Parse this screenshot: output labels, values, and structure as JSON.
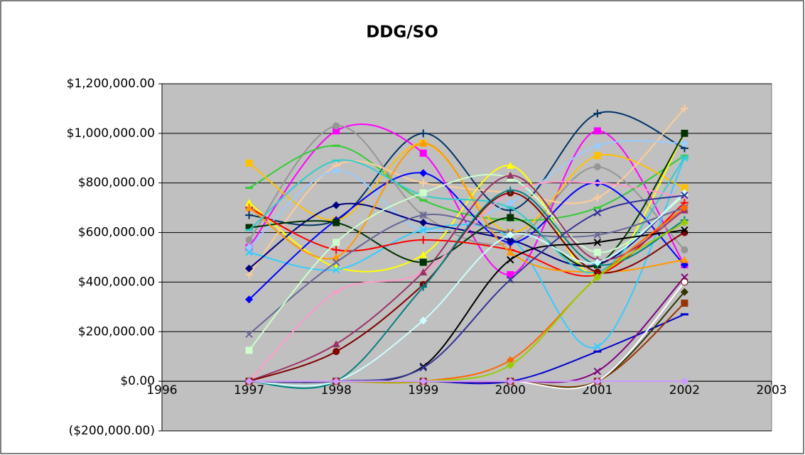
{
  "chart_data": {
    "type": "line",
    "title": "DDG/SO",
    "smooth": true,
    "x": [
      1997,
      1998,
      1999,
      2000,
      2001,
      2002
    ],
    "xlim": [
      1996,
      2003
    ],
    "xticks": [
      1996,
      1997,
      1998,
      1999,
      2000,
      2001,
      2002,
      2003
    ],
    "ylim": [
      -200000,
      1200000
    ],
    "yticks": [
      {
        "value": -200000,
        "label": "($200,000.00)"
      },
      {
        "value": 0,
        "label": "$0.00"
      },
      {
        "value": 200000,
        "label": "$200,000.00"
      },
      {
        "value": 400000,
        "label": "$400,000.00"
      },
      {
        "value": 600000,
        "label": "$600,000.00"
      },
      {
        "value": 800000,
        "label": "$800,000.00"
      },
      {
        "value": 1000000,
        "label": "$1,000,000.00"
      },
      {
        "value": 1200000,
        "label": "$1,200,000.00"
      }
    ],
    "grid": true,
    "plot_background": "#c0c0c0",
    "series": [
      {
        "color": "#003366",
        "marker": "plus",
        "values": [
          670000,
          650000,
          1000000,
          690000,
          1080000,
          940000
        ]
      },
      {
        "color": "#ff00ff",
        "marker": "square",
        "values": [
          540000,
          1010000,
          920000,
          430000,
          1010000,
          470000
        ]
      },
      {
        "color": "#969696",
        "marker": "circle",
        "values": [
          570000,
          1030000,
          670000,
          560000,
          865000,
          530000
        ]
      },
      {
        "color": "#33cc33",
        "marker": "dash",
        "values": [
          780000,
          950000,
          730000,
          650000,
          700000,
          910000
        ]
      },
      {
        "color": "#ffc000",
        "marker": "square",
        "values": [
          880000,
          650000,
          960000,
          600000,
          910000,
          780000
        ]
      },
      {
        "color": "#ffff00",
        "marker": "triangle",
        "values": [
          720000,
          460000,
          510000,
          870000,
          430000,
          1000000
        ]
      },
      {
        "color": "#ffcc99",
        "marker": "plus",
        "values": [
          430000,
          870000,
          800000,
          760000,
          740000,
          1100000
        ]
      },
      {
        "color": "#99ccff",
        "marker": "diamond",
        "values": [
          540000,
          850000,
          610000,
          720000,
          950000,
          960000
        ]
      },
      {
        "color": "#33ccff",
        "marker": "x",
        "values": [
          520000,
          450000,
          610000,
          580000,
          140000,
          900000
        ]
      },
      {
        "color": "#0000ff",
        "marker": "diamond",
        "values": [
          330000,
          650000,
          840000,
          560000,
          800000,
          470000
        ]
      },
      {
        "color": "#000080",
        "marker": "diamond",
        "values": [
          455000,
          710000,
          640000,
          570000,
          470000,
          760000
        ]
      },
      {
        "color": "#003300",
        "marker": "square",
        "values": [
          620000,
          640000,
          480000,
          660000,
          470000,
          1000000
        ]
      },
      {
        "color": "#ff0000",
        "marker": "plus",
        "values": [
          700000,
          530000,
          570000,
          530000,
          430000,
          720000
        ]
      },
      {
        "color": "#ff9900",
        "marker": "triangle",
        "values": [
          700000,
          500000,
          960000,
          520000,
          440000,
          490000
        ]
      },
      {
        "color": "#33cccc",
        "marker": "dash",
        "values": [
          610000,
          890000,
          750000,
          700000,
          440000,
          900000
        ]
      },
      {
        "color": "#666699",
        "marker": "x",
        "values": [
          190000,
          480000,
          670000,
          600000,
          590000,
          700000
        ]
      },
      {
        "color": "#ccffcc",
        "marker": "square",
        "values": [
          125000,
          560000,
          760000,
          820000,
          520000,
          750000
        ]
      },
      {
        "color": "#ff99cc",
        "marker": "dash",
        "values": [
          0,
          360000,
          440000,
          760000,
          800000,
          740000
        ]
      },
      {
        "color": "#993366",
        "marker": "triangle",
        "values": [
          0,
          150000,
          440000,
          830000,
          490000,
          690000
        ]
      },
      {
        "color": "#800000",
        "marker": "circle",
        "values": [
          0,
          120000,
          390000,
          760000,
          440000,
          600000
        ]
      },
      {
        "color": "#008080",
        "marker": "plus",
        "values": [
          0,
          0,
          380000,
          770000,
          470000,
          650000
        ]
      },
      {
        "color": "#ccffff",
        "marker": "diamond",
        "values": [
          0,
          0,
          245000,
          590000,
          480000,
          760000
        ]
      },
      {
        "color": "#000000",
        "marker": "x",
        "values": [
          0,
          0,
          60000,
          490000,
          560000,
          610000
        ]
      },
      {
        "color": "#333399",
        "marker": "x",
        "values": [
          0,
          0,
          55000,
          410000,
          680000,
          750000
        ]
      },
      {
        "color": "#ff6600",
        "marker": "diamond",
        "values": [
          0,
          0,
          0,
          85000,
          420000,
          700000
        ]
      },
      {
        "color": "#99cc00",
        "marker": "diamond",
        "values": [
          0,
          0,
          0,
          65000,
          420000,
          640000
        ]
      },
      {
        "color": "#0000cc",
        "marker": "dash",
        "values": [
          0,
          0,
          0,
          0,
          120000,
          270000
        ]
      },
      {
        "color": "#800080",
        "marker": "x",
        "values": [
          0,
          0,
          0,
          0,
          40000,
          420000
        ]
      },
      {
        "color": "#993300",
        "marker": "square",
        "values": [
          0,
          0,
          0,
          0,
          0,
          315000
        ]
      },
      {
        "color": "#333300",
        "marker": "diamond",
        "values": [
          0,
          0,
          0,
          0,
          0,
          360000
        ]
      },
      {
        "color": "#ffffff",
        "marker": "circle",
        "values": [
          0,
          0,
          0,
          0,
          0,
          400000
        ]
      },
      {
        "color": "#cc99ff",
        "marker": "diamond",
        "values": [
          0,
          0,
          0,
          0,
          0,
          0
        ]
      }
    ]
  }
}
